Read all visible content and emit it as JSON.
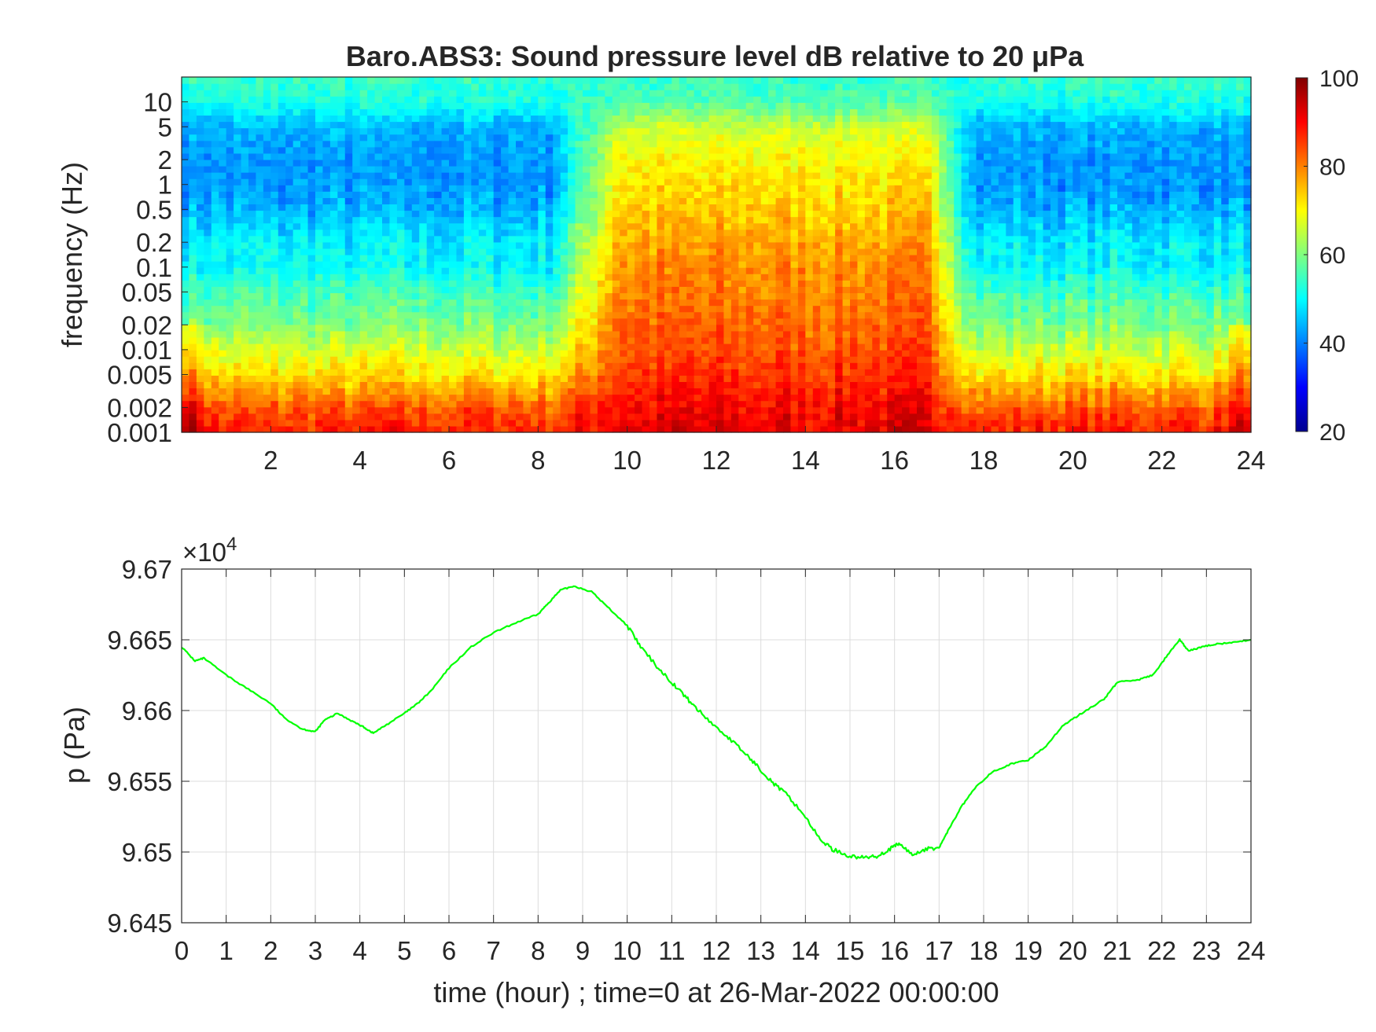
{
  "chart_data": [
    {
      "type": "heatmap",
      "title": "Baro.ABS3: Sound pressure level dB relative to 20 μPa",
      "xlabel": "",
      "ylabel": "frequency (Hz)",
      "x_unit": "hour",
      "xlim": [
        0,
        24
      ],
      "x_ticks": [
        2,
        4,
        6,
        8,
        10,
        12,
        14,
        16,
        18,
        20,
        22,
        24
      ],
      "y_scale": "log",
      "ylim": [
        0.001,
        20
      ],
      "y_ticks": [
        0.001,
        0.002,
        0.005,
        0.01,
        0.02,
        0.05,
        0.1,
        0.2,
        0.5,
        1,
        2,
        5,
        10
      ],
      "y_tick_labels": [
        "0.001",
        "0.002",
        "0.005",
        "0.01",
        "0.02",
        "0.05",
        "0.1",
        "0.2",
        "0.5",
        "1",
        "2",
        "5",
        "10"
      ],
      "colormap": "jet",
      "color_range": [
        20,
        100
      ],
      "colorbar_ticks": [
        20,
        40,
        60,
        80,
        100
      ],
      "colorbar_label": "",
      "level_profile_dB": {
        "frequency_Hz": [
          0.001,
          0.002,
          0.005,
          0.01,
          0.02,
          0.05,
          0.1,
          0.2,
          0.5,
          1,
          2,
          5,
          10,
          20
        ],
        "quiet_period": [
          88,
          83,
          72,
          66,
          60,
          55,
          50,
          49,
          44,
          42,
          42,
          44,
          52,
          54
        ],
        "active_period_10_to_17h": [
          92,
          90,
          86,
          84,
          82,
          80,
          79,
          77,
          74,
          72,
          70,
          66,
          56,
          54
        ]
      },
      "active_period_hours": [
        9.5,
        17
      ]
    },
    {
      "type": "line",
      "title": "",
      "xlabel": "time (hour) ; time=0 at 26-Mar-2022 00:00:00",
      "ylabel": "p (Pa)",
      "y_multiplier": "×10^4",
      "multiplier_base": "×10",
      "multiplier_exp": "4",
      "xlim": [
        0,
        24
      ],
      "ylim": [
        9.645,
        9.67
      ],
      "x_ticks": [
        0,
        1,
        2,
        3,
        4,
        5,
        6,
        7,
        8,
        9,
        10,
        11,
        12,
        13,
        14,
        15,
        16,
        17,
        18,
        19,
        20,
        21,
        22,
        23,
        24
      ],
      "y_ticks": [
        9.645,
        9.65,
        9.655,
        9.66,
        9.665,
        9.67
      ],
      "y_tick_labels": [
        "9.645",
        "9.65",
        "9.655",
        "9.66",
        "9.665",
        "9.67"
      ],
      "grid": true,
      "series": [
        {
          "color": "#00ff00",
          "x": [
            0,
            0.3,
            0.5,
            1,
            1.5,
            2,
            2.3,
            2.7,
            3,
            3.2,
            3.5,
            3.8,
            4.1,
            4.3,
            4.6,
            5,
            5.3,
            5.6,
            6,
            6.5,
            7,
            7.5,
            8,
            8.2,
            8.5,
            8.8,
            9.2,
            9.6,
            10,
            10.3,
            10.7,
            11,
            11.3,
            11.6,
            12,
            12.3,
            12.7,
            13,
            13.3,
            13.6,
            14,
            14.3,
            14.6,
            15,
            15.3,
            15.6,
            15.9,
            16.1,
            16.4,
            16.7,
            17,
            17.2,
            17.5,
            17.8,
            18.2,
            18.6,
            19,
            19.4,
            19.8,
            20.2,
            20.7,
            21,
            21.5,
            21.8,
            22.1,
            22.4,
            22.6,
            22.9,
            23.2,
            23.6,
            24
          ],
          "y": [
            9.6645,
            9.6635,
            9.6637,
            9.6625,
            9.6615,
            9.6605,
            9.6595,
            9.6587,
            9.6585,
            9.6593,
            9.6598,
            9.6593,
            9.6588,
            9.6584,
            9.659,
            9.6598,
            9.6605,
            9.6614,
            9.663,
            9.6645,
            9.6655,
            9.6662,
            9.6668,
            9.6675,
            9.6685,
            9.6688,
            9.6684,
            9.6672,
            9.666,
            9.6645,
            9.663,
            9.662,
            9.661,
            9.66,
            9.6588,
            9.658,
            9.6568,
            9.6558,
            9.6548,
            9.654,
            9.6525,
            9.651,
            9.6502,
            9.6497,
            9.6496,
            9.6497,
            9.6502,
            9.6506,
            9.6498,
            9.6502,
            9.6503,
            9.6515,
            9.6532,
            9.6545,
            9.6557,
            9.6562,
            9.6565,
            9.6575,
            9.659,
            9.6598,
            9.6608,
            9.662,
            9.6622,
            9.6625,
            9.6638,
            9.665,
            9.6642,
            9.6645,
            9.6647,
            9.6648,
            9.665
          ]
        }
      ]
    }
  ]
}
